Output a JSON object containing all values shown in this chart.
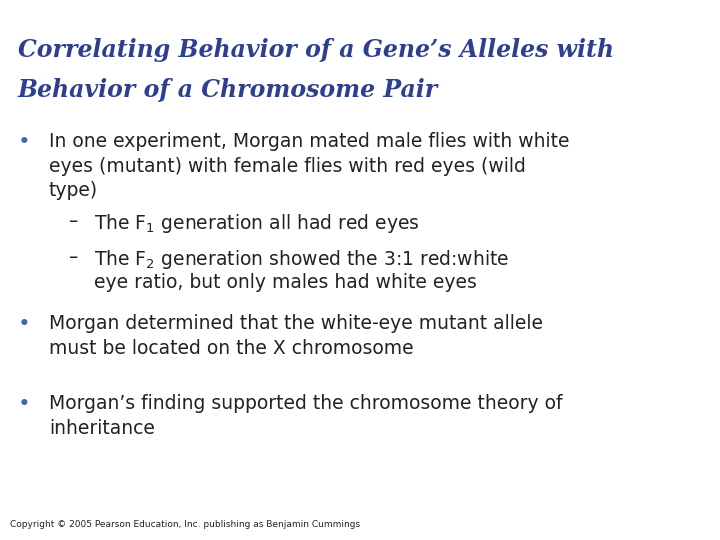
{
  "title_line1": "Correlating Behavior of a Gene’s Alleles with",
  "title_line2": "Behavior of a Chromosome Pair",
  "title_color": "#2E3F8F",
  "title_fontsize": 17,
  "teal_color": "#3AADA0",
  "bg_color": "#FFFFFF",
  "bullet_color": "#3A6EA8",
  "text_color": "#222222",
  "copyright": "Copyright © 2005 Pearson Education, Inc. publishing as Benjamin Cummings",
  "bullet1_line1": "In one experiment, Morgan mated male flies with white",
  "bullet1_line2": "eyes (mutant) with female flies with red eyes (wild",
  "bullet1_line3": "type)",
  "sub1": "The F$_1$ generation all had red eyes",
  "sub2_line1": "The F$_2$ generation showed the 3:1 red:white",
  "sub2_line2": "eye ratio, but only males had white eyes",
  "bullet2_line1": "Morgan determined that the white-eye mutant allele",
  "bullet2_line2": "must be located on the X chromosome",
  "bullet3_line1": "Morgan’s finding supported the chromosome theory of",
  "bullet3_line2": "inheritance",
  "body_fontsize": 13.5,
  "sub_fontsize": 13.5,
  "copyright_fontsize": 6.5
}
